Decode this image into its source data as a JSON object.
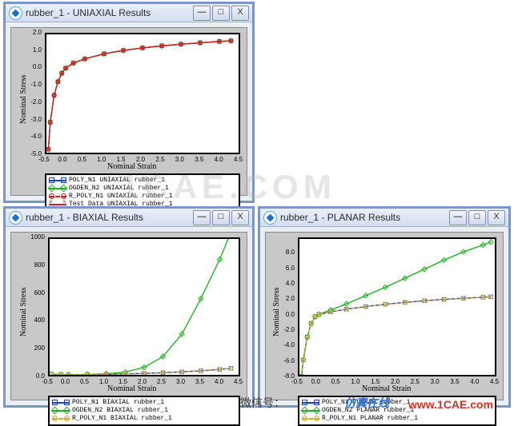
{
  "watermark": "1CAE.COM",
  "footer": {
    "wechat_label": "微信号：",
    "brand_cn": "仿真在线",
    "brand_url": "www.1CAE.com"
  },
  "windows": {
    "uniaxial": {
      "title": "rubber_1 - UNIAXIAL Results",
      "chart": {
        "type": "line",
        "xlabel": "Nominal Strain",
        "ylabel": "Nominal Stress",
        "xlim": [
          -0.5,
          4.5
        ],
        "ylim": [
          -5.0,
          2.0
        ],
        "xticks": [
          -0.5,
          0.0,
          0.5,
          1.0,
          1.5,
          2.0,
          2.5,
          3.0,
          3.5,
          4.0,
          4.5
        ],
        "yticks": [
          -5.0,
          -4.0,
          -3.0,
          -2.0,
          -1.0,
          0.0,
          1.0,
          2.0
        ],
        "series": [
          {
            "name": "POLY_N1 UNIAXIAL rubber_1",
            "color": "#1a3fd1",
            "marker": "square",
            "dash": "solid"
          },
          {
            "name": "OGDEN_N2 UNIAXIAL rubber_1",
            "color": "#1fb31f",
            "marker": "diamond",
            "dash": "solid"
          },
          {
            "name": "R_POLY_N1 UNIAXIAL rubber_1",
            "color": "#d01818",
            "marker": "circle",
            "dash": "dash"
          },
          {
            "name": "Test Data UNIAXIAL rubber_1",
            "color": "#c22",
            "marker": "x",
            "dash": "solid"
          }
        ],
        "x": [
          -0.45,
          -0.4,
          -0.3,
          -0.2,
          -0.1,
          0,
          0.2,
          0.5,
          1.0,
          1.5,
          2.0,
          2.5,
          3.0,
          3.5,
          4.0,
          4.3
        ],
        "y_common": [
          -4.8,
          -3.2,
          -1.6,
          -0.8,
          -0.3,
          0,
          0.3,
          0.55,
          0.85,
          1.05,
          1.2,
          1.32,
          1.42,
          1.5,
          1.58,
          1.62
        ],
        "background_color": "#ffffff",
        "frame_color": "#000000"
      }
    },
    "biaxial": {
      "title": "rubber_1 - BIAXIAL Results",
      "chart": {
        "type": "line",
        "xlabel": "Nominal Strain",
        "ylabel": "Nominal Stress",
        "xlim": [
          -0.5,
          4.5
        ],
        "ylim": [
          0,
          1000
        ],
        "xticks": [
          -0.5,
          0.0,
          0.5,
          1.0,
          1.5,
          2.0,
          2.5,
          3.0,
          3.5,
          4.0,
          4.5
        ],
        "yticks": [
          0,
          200,
          400,
          600,
          800,
          1000
        ],
        "series": [
          {
            "name": "POLY_N1 BIAXIAL rubber_1",
            "color": "#1a3fd1",
            "marker": "square",
            "dash": "solid"
          },
          {
            "name": "OGDEN_N2 BIAXIAL rubber_1",
            "color": "#1fb31f",
            "marker": "diamond",
            "dash": "solid"
          },
          {
            "name": "R_POLY_N1 BIAXIAL rubber_1",
            "color": "#d0a818",
            "marker": "circle",
            "dash": "dash"
          }
        ],
        "x": [
          -0.45,
          -0.2,
          0,
          0.5,
          1.0,
          1.5,
          2.0,
          2.5,
          3.0,
          3.5,
          4.0,
          4.3
        ],
        "y_green": [
          5,
          2,
          0,
          3,
          8,
          20,
          55,
          135,
          300,
          560,
          850,
          1050
        ],
        "y_other": [
          5,
          2,
          0,
          2,
          4,
          7,
          11,
          16,
          22,
          30,
          40,
          48
        ],
        "background_color": "#ffffff",
        "frame_color": "#000000"
      }
    },
    "planar": {
      "title": "rubber_1 - PLANAR Results",
      "chart": {
        "type": "line",
        "xlabel": "Nominal Strain",
        "ylabel": "Nominal Stress",
        "xlim": [
          -0.5,
          4.5
        ],
        "ylim": [
          -8,
          10
        ],
        "xticks": [
          -0.5,
          0.0,
          0.5,
          1.0,
          1.5,
          2.0,
          2.5,
          3.0,
          3.5,
          4.0,
          4.5
        ],
        "yticks": [
          -8,
          -6,
          -4,
          -2,
          0,
          2,
          4,
          6,
          8
        ],
        "series": [
          {
            "name": "POLY_N1 PLANAR rubber_1",
            "color": "#1a3fd1",
            "marker": "square",
            "dash": "solid"
          },
          {
            "name": "OGDEN_N2 PLANAR rubber_1",
            "color": "#1fb31f",
            "marker": "diamond",
            "dash": "solid"
          },
          {
            "name": "R_POLY_N1 PLANAR rubber_1",
            "color": "#d0a818",
            "marker": "circle",
            "dash": "dash"
          }
        ],
        "x": [
          -0.45,
          -0.4,
          -0.3,
          -0.2,
          -0.1,
          0,
          0.3,
          0.7,
          1.2,
          1.7,
          2.2,
          2.7,
          3.2,
          3.7,
          4.2,
          4.4
        ],
        "y_green": [
          -8.2,
          -6.0,
          -3.0,
          -1.2,
          -0.3,
          0,
          0.6,
          1.4,
          2.5,
          3.6,
          4.8,
          6.0,
          7.2,
          8.3,
          9.2,
          9.6
        ],
        "y_other": [
          -8.2,
          -6.0,
          -3.0,
          -1.2,
          -0.3,
          0,
          0.35,
          0.7,
          1.05,
          1.35,
          1.6,
          1.82,
          2.0,
          2.15,
          2.28,
          2.34
        ],
        "background_color": "#ffffff",
        "frame_color": "#000000"
      }
    }
  },
  "win_buttons": {
    "minimize": "—",
    "maximize": "□",
    "close": "X"
  }
}
